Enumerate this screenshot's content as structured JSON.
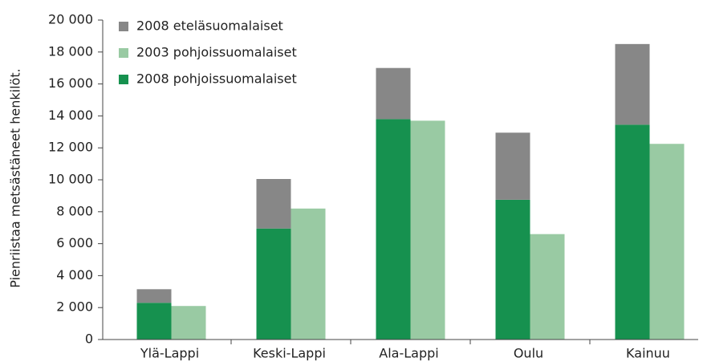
{
  "chart_data": {
    "type": "bar",
    "y_label": "Pienriistaa metsästäneet henkilöt.",
    "categories": [
      "Ylä-Lappi",
      "Keski-Lappi",
      "Ala-Lappi",
      "Oulu",
      "Kainuu"
    ],
    "series": [
      {
        "name": "2008 eteläsuomalaiset",
        "color": "#878787",
        "values": [
          850,
          3100,
          3200,
          4200,
          5050
        ]
      },
      {
        "name": "2003 pohjoissuomalaiset",
        "color": "#99caa3",
        "values": [
          2100,
          8200,
          13700,
          6600,
          12250
        ]
      },
      {
        "name": "2008 pohjoissuomalaiset",
        "color": "#16914f",
        "values": [
          2300,
          6950,
          13800,
          8750,
          13450
        ]
      }
    ],
    "ylim": [
      0,
      20000
    ],
    "yticks": [
      0,
      {
        "value": 2000,
        "label": "2 000"
      },
      {
        "value": 4000,
        "label": "4 000"
      },
      {
        "value": 6000,
        "label": "6 000"
      },
      {
        "value": 8000,
        "label": "8 000"
      },
      {
        "value": 10000,
        "label": "10 000"
      },
      {
        "value": 12000,
        "label": "12 000"
      },
      {
        "value": 14000,
        "label": "14 000"
      },
      {
        "value": 16000,
        "label": "16 000"
      },
      {
        "value": 18000,
        "label": "18 000"
      },
      {
        "value": 20000,
        "label": "20 000"
      }
    ],
    "legend": "upper left"
  }
}
